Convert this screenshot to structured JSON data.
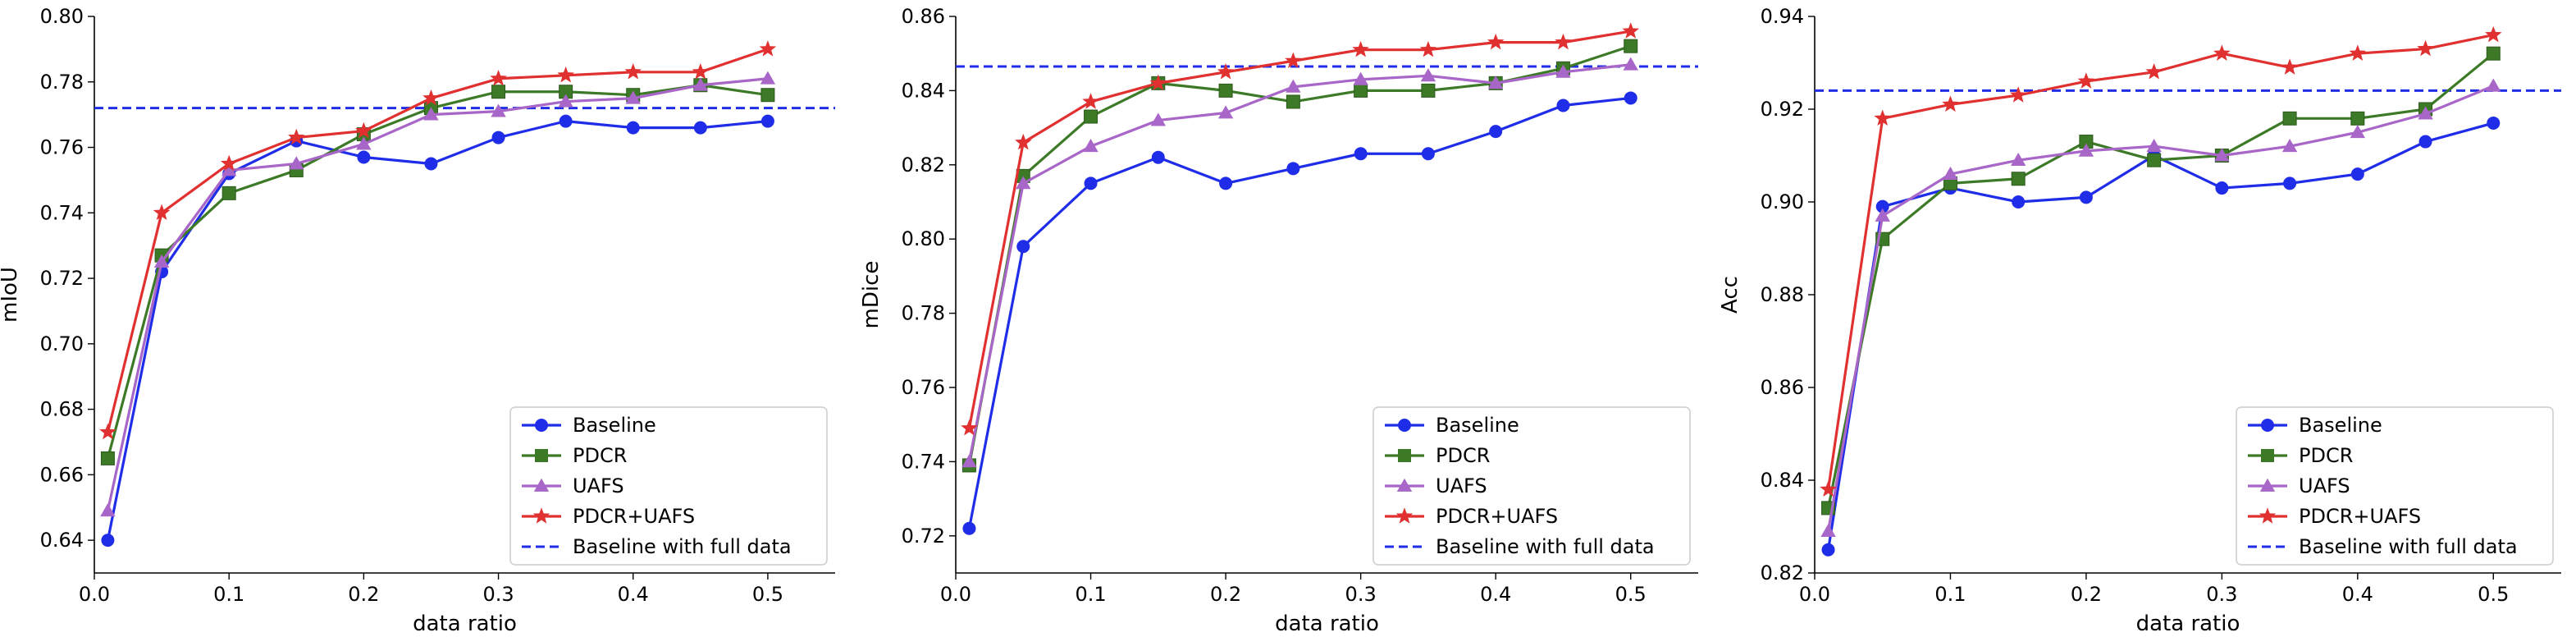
{
  "series_colors": {
    "Baseline": "#1f2de8",
    "PDCR": "#3d7a27",
    "UAFS": "#a866c8",
    "PDCR+UAFS": "#e03030",
    "Baseline with full data": "#1f2de8"
  },
  "chart_data": [
    {
      "type": "line",
      "title": "",
      "xlabel": "data ratio",
      "ylabel": "mIoU",
      "xlim": [
        0.0,
        0.55
      ],
      "ylim": [
        0.63,
        0.8
      ],
      "xticks": [
        0.0,
        0.1,
        0.2,
        0.3,
        0.4,
        0.5
      ],
      "xtick_labels": [
        "0.0",
        "0.1",
        "0.2",
        "0.3",
        "0.4",
        "0.5"
      ],
      "yticks": [
        0.64,
        0.66,
        0.68,
        0.7,
        0.72,
        0.74,
        0.76,
        0.78,
        0.8
      ],
      "ytick_labels": [
        "0.64",
        "0.66",
        "0.68",
        "0.70",
        "0.72",
        "0.74",
        "0.76",
        "0.78",
        "0.80"
      ],
      "x": [
        0.01,
        0.05,
        0.1,
        0.15,
        0.2,
        0.25,
        0.3,
        0.35,
        0.4,
        0.45,
        0.5
      ],
      "series": [
        {
          "name": "Baseline",
          "marker": "circle",
          "values": [
            0.64,
            0.722,
            0.752,
            0.762,
            0.757,
            0.755,
            0.763,
            0.768,
            0.766,
            0.766,
            0.768
          ]
        },
        {
          "name": "PDCR",
          "marker": "square",
          "values": [
            0.665,
            0.727,
            0.746,
            0.753,
            0.764,
            0.772,
            0.777,
            0.777,
            0.776,
            0.779,
            0.776
          ]
        },
        {
          "name": "UAFS",
          "marker": "triangle",
          "values": [
            0.649,
            0.725,
            0.753,
            0.755,
            0.761,
            0.77,
            0.771,
            0.774,
            0.775,
            0.779,
            0.781
          ]
        },
        {
          "name": "PDCR+UAFS",
          "marker": "star",
          "values": [
            0.673,
            0.74,
            0.755,
            0.763,
            0.765,
            0.775,
            0.781,
            0.782,
            0.783,
            0.783,
            0.79
          ]
        }
      ],
      "reference_line": {
        "name": "Baseline with full data",
        "value": 0.772
      },
      "legend": {
        "position": "lower-right",
        "entries": [
          "Baseline",
          "PDCR",
          "UAFS",
          "PDCR+UAFS",
          "Baseline with full data"
        ]
      }
    },
    {
      "type": "line",
      "title": "",
      "xlabel": "data ratio",
      "ylabel": "mDice",
      "xlim": [
        0.0,
        0.55
      ],
      "ylim": [
        0.71,
        0.86
      ],
      "xticks": [
        0.0,
        0.1,
        0.2,
        0.3,
        0.4,
        0.5
      ],
      "xtick_labels": [
        "0.0",
        "0.1",
        "0.2",
        "0.3",
        "0.4",
        "0.5"
      ],
      "yticks": [
        0.72,
        0.74,
        0.76,
        0.78,
        0.8,
        0.82,
        0.84,
        0.86
      ],
      "ytick_labels": [
        "0.72",
        "0.74",
        "0.76",
        "0.78",
        "0.80",
        "0.82",
        "0.84",
        "0.86"
      ],
      "x": [
        0.01,
        0.05,
        0.1,
        0.15,
        0.2,
        0.25,
        0.3,
        0.35,
        0.4,
        0.45,
        0.5
      ],
      "series": [
        {
          "name": "Baseline",
          "marker": "circle",
          "values": [
            0.722,
            0.798,
            0.815,
            0.822,
            0.815,
            0.819,
            0.823,
            0.823,
            0.829,
            0.836,
            0.838
          ]
        },
        {
          "name": "PDCR",
          "marker": "square",
          "values": [
            0.739,
            0.817,
            0.833,
            0.842,
            0.84,
            0.837,
            0.84,
            0.84,
            0.842,
            0.846,
            0.852
          ]
        },
        {
          "name": "UAFS",
          "marker": "triangle",
          "values": [
            0.74,
            0.815,
            0.825,
            0.832,
            0.834,
            0.841,
            0.843,
            0.844,
            0.842,
            0.845,
            0.847
          ]
        },
        {
          "name": "PDCR+UAFS",
          "marker": "star",
          "values": [
            0.749,
            0.826,
            0.837,
            0.842,
            0.845,
            0.848,
            0.851,
            0.851,
            0.853,
            0.853,
            0.856
          ]
        }
      ],
      "reference_line": {
        "name": "Baseline with full data",
        "value": 0.8465
      },
      "legend": {
        "position": "lower-right",
        "entries": [
          "Baseline",
          "PDCR",
          "UAFS",
          "PDCR+UAFS",
          "Baseline with full data"
        ]
      }
    },
    {
      "type": "line",
      "title": "",
      "xlabel": "data ratio",
      "ylabel": "Acc",
      "xlim": [
        0.0,
        0.55
      ],
      "ylim": [
        0.82,
        0.94
      ],
      "xticks": [
        0.0,
        0.1,
        0.2,
        0.3,
        0.4,
        0.5
      ],
      "xtick_labels": [
        "0.0",
        "0.1",
        "0.2",
        "0.3",
        "0.4",
        "0.5"
      ],
      "yticks": [
        0.82,
        0.84,
        0.86,
        0.88,
        0.9,
        0.92,
        0.94
      ],
      "ytick_labels": [
        "0.82",
        "0.84",
        "0.86",
        "0.88",
        "0.90",
        "0.92",
        "0.94"
      ],
      "x": [
        0.01,
        0.05,
        0.1,
        0.15,
        0.2,
        0.25,
        0.3,
        0.35,
        0.4,
        0.45,
        0.5
      ],
      "series": [
        {
          "name": "Baseline",
          "marker": "circle",
          "values": [
            0.825,
            0.899,
            0.903,
            0.9,
            0.901,
            0.91,
            0.903,
            0.904,
            0.906,
            0.913,
            0.917
          ]
        },
        {
          "name": "PDCR",
          "marker": "square",
          "values": [
            0.834,
            0.892,
            0.904,
            0.905,
            0.913,
            0.909,
            0.91,
            0.918,
            0.918,
            0.92,
            0.932
          ]
        },
        {
          "name": "UAFS",
          "marker": "triangle",
          "values": [
            0.829,
            0.897,
            0.906,
            0.909,
            0.911,
            0.912,
            0.91,
            0.912,
            0.915,
            0.919,
            0.925
          ]
        },
        {
          "name": "PDCR+UAFS",
          "marker": "star",
          "values": [
            0.838,
            0.918,
            0.921,
            0.923,
            0.926,
            0.928,
            0.932,
            0.929,
            0.932,
            0.933,
            0.936
          ]
        }
      ],
      "reference_line": {
        "name": "Baseline with full data",
        "value": 0.924
      },
      "legend": {
        "position": "lower-right",
        "entries": [
          "Baseline",
          "PDCR",
          "UAFS",
          "PDCR+UAFS",
          "Baseline with full data"
        ]
      }
    }
  ]
}
